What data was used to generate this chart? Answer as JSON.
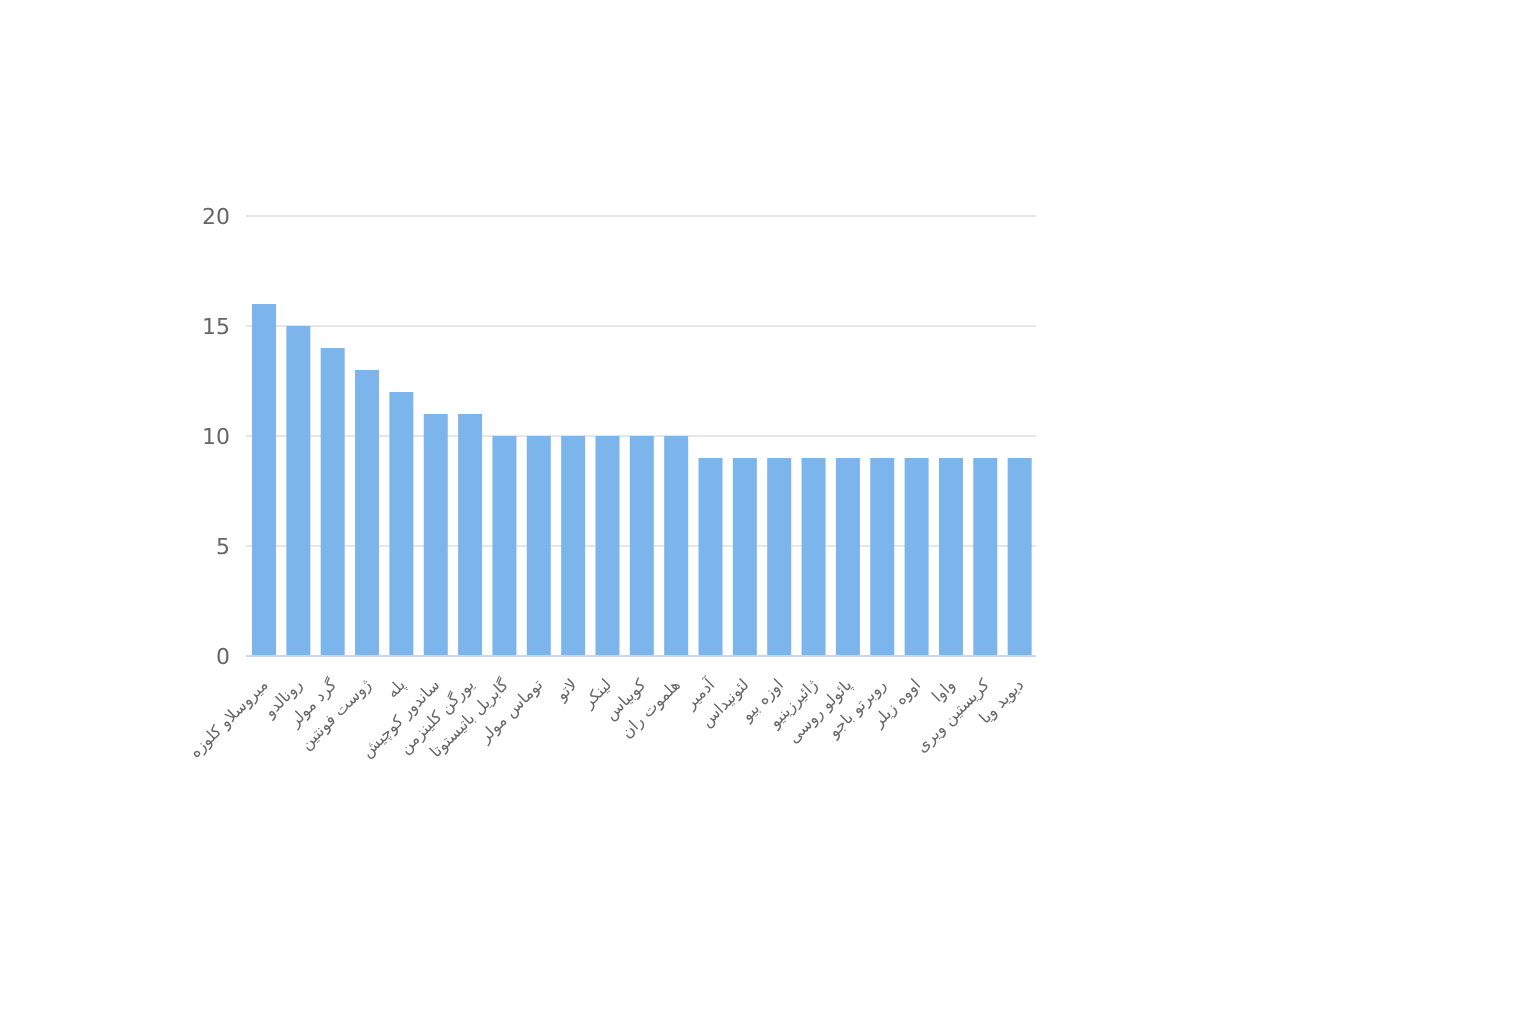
{
  "chart_data": {
    "type": "bar",
    "categories": [
      "میروسلاو کلوزه",
      "رونالدو",
      "گرد مولر",
      "ژوست فونتین",
      "پله",
      "ساندور کوچیش",
      "یورگن کلینزمن",
      "گابریل باتیستوتا",
      "توماس مولر",
      "لاتو",
      "لینکر",
      "کوبیاس",
      "هلموت ران",
      "آدمیر",
      "لئونیداس",
      "اوزه بیو",
      "ژائیرزینیو",
      "پائولو روسی",
      "روبرتو باجو",
      "اووه زیلر",
      "واوا",
      "کریستین ویری",
      "دیوید ویا"
    ],
    "values": [
      16,
      15,
      14,
      13,
      12,
      11,
      11,
      10,
      10,
      10,
      10,
      10,
      10,
      9,
      9,
      9,
      9,
      9,
      9,
      9,
      9,
      9,
      9
    ],
    "color": "#7cb5ec",
    "ylim": [
      0,
      20
    ],
    "yticks": [
      0,
      5,
      10,
      15,
      20
    ],
    "grid": "y"
  }
}
